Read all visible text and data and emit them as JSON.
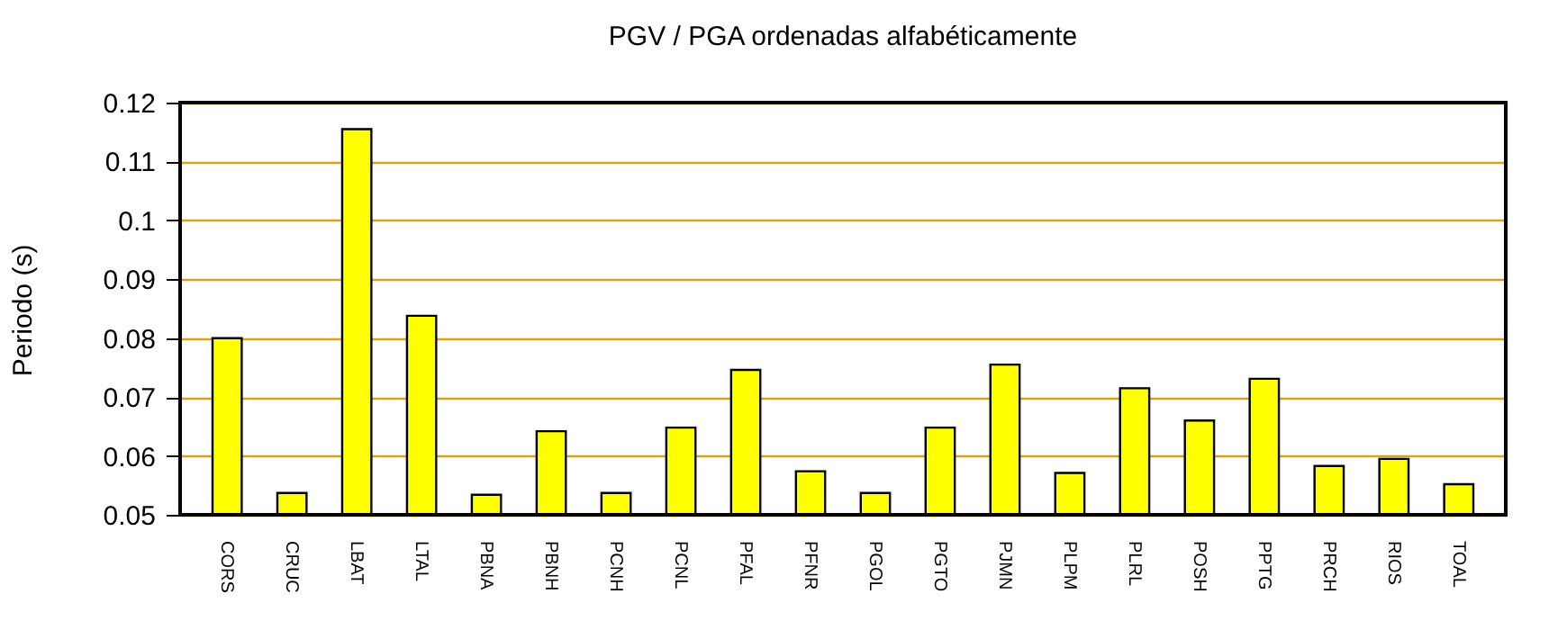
{
  "chart_data": {
    "type": "bar",
    "title": "PGV / PGA ordenadas alfabéticamente",
    "ylabel": "Periodo (s)",
    "categories": [
      "CORS",
      "CRUC",
      "LBAT",
      "LTAL",
      "PBNA",
      "PBNH",
      "PCNH",
      "PCNL",
      "PFAL",
      "PFNR",
      "PGOL",
      "PGTO",
      "PJMN",
      "PLPM",
      "PLRL",
      "POSH",
      "PPTG",
      "PRCH",
      "RIOS",
      "TOAL"
    ],
    "values": [
      0.08,
      0.0537,
      0.1155,
      0.0838,
      0.0534,
      0.0642,
      0.0537,
      0.0648,
      0.0746,
      0.0574,
      0.0537,
      0.0648,
      0.0755,
      0.0571,
      0.0715,
      0.066,
      0.0731,
      0.0583,
      0.0595,
      0.0552
    ],
    "color": "#ffff00",
    "ylim": [
      0.05,
      0.12
    ],
    "yticks": [
      0.05,
      0.06,
      0.07,
      0.08,
      0.09,
      0.1,
      0.11,
      0.12
    ],
    "grid": "y"
  }
}
